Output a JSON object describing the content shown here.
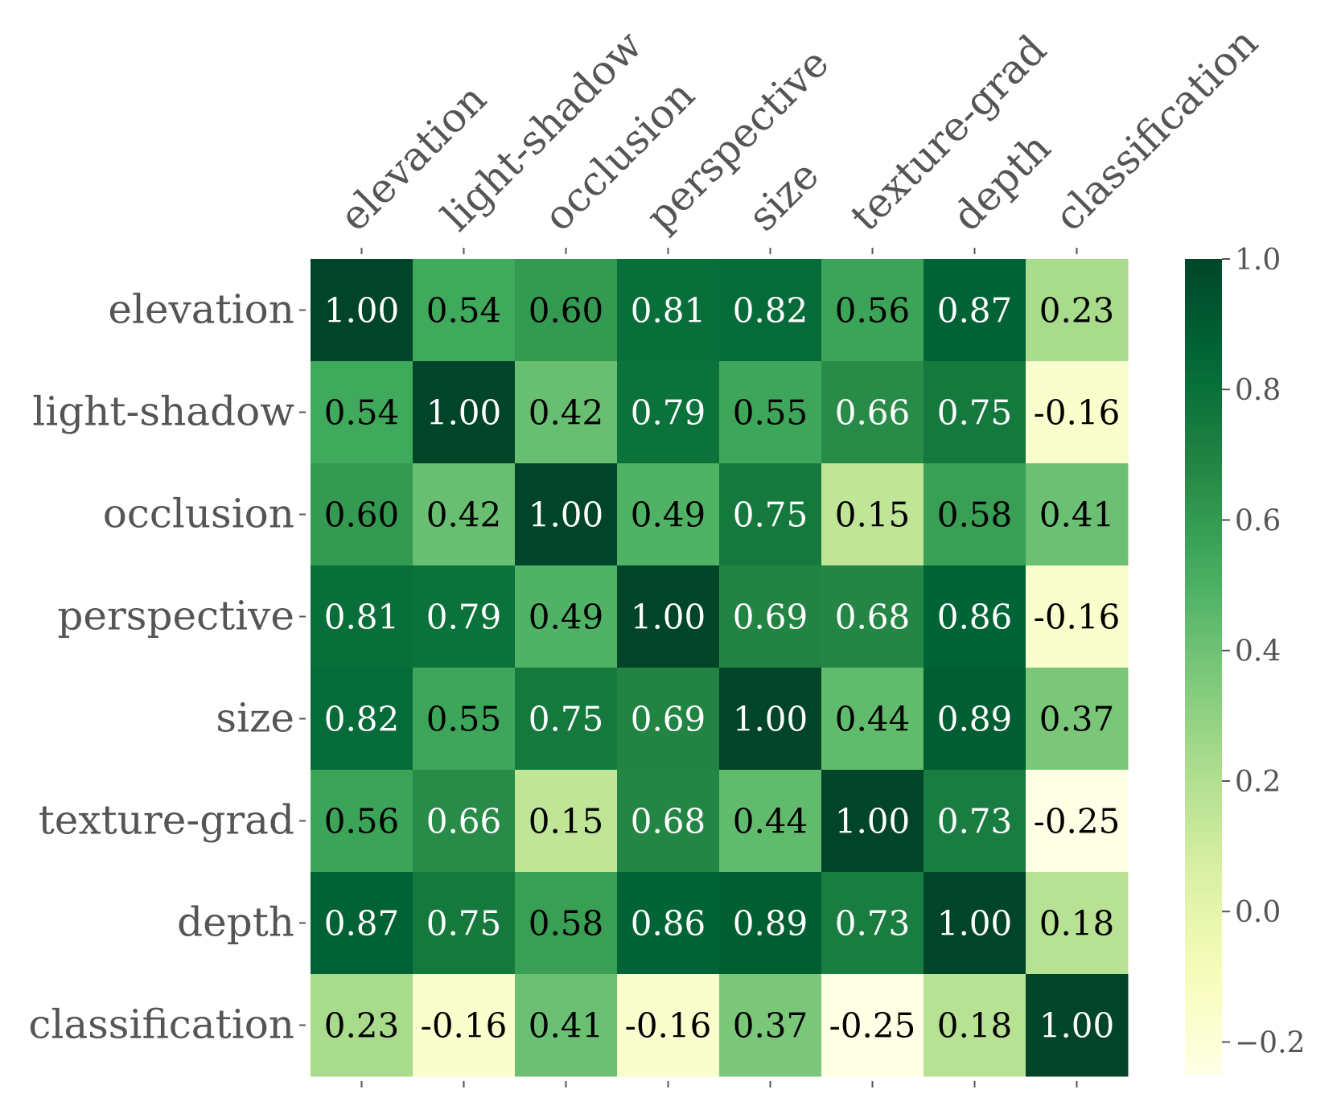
{
  "chart_data": {
    "type": "heatmap",
    "title": "",
    "labels": [
      "elevation",
      "light-shadow",
      "occlusion",
      "perspective",
      "size",
      "texture-grad",
      "depth",
      "classification"
    ],
    "matrix": [
      [
        1.0,
        0.54,
        0.6,
        0.81,
        0.82,
        0.56,
        0.87,
        0.23
      ],
      [
        0.54,
        1.0,
        0.42,
        0.79,
        0.55,
        0.66,
        0.75,
        -0.16
      ],
      [
        0.6,
        0.42,
        1.0,
        0.49,
        0.75,
        0.15,
        0.58,
        0.41
      ],
      [
        0.81,
        0.79,
        0.49,
        1.0,
        0.69,
        0.68,
        0.86,
        -0.16
      ],
      [
        0.82,
        0.55,
        0.75,
        0.69,
        1.0,
        0.44,
        0.89,
        0.37
      ],
      [
        0.56,
        0.66,
        0.15,
        0.68,
        0.44,
        1.0,
        0.73,
        -0.25
      ],
      [
        0.87,
        0.75,
        0.58,
        0.86,
        0.89,
        0.73,
        1.0,
        0.18
      ],
      [
        0.23,
        -0.16,
        0.41,
        -0.16,
        0.37,
        -0.25,
        0.18,
        1.0
      ]
    ],
    "cell_labels": [
      [
        "1.00",
        "0.54",
        "0.60",
        "0.81",
        "0.82",
        "0.56",
        "0.87",
        "0.23"
      ],
      [
        "0.54",
        "1.00",
        "0.42",
        "0.79",
        "0.55",
        "0.66",
        "0.75",
        "-0.16"
      ],
      [
        "0.60",
        "0.42",
        "1.00",
        "0.49",
        "0.75",
        "0.15",
        "0.58",
        "0.41"
      ],
      [
        "0.81",
        "0.79",
        "0.49",
        "1.00",
        "0.69",
        "0.68",
        "0.86",
        "-0.16"
      ],
      [
        "0.82",
        "0.55",
        "0.75",
        "0.69",
        "1.00",
        "0.44",
        "0.89",
        "0.37"
      ],
      [
        "0.56",
        "0.66",
        "0.15",
        "0.68",
        "0.44",
        "1.00",
        "0.73",
        "-0.25"
      ],
      [
        "0.87",
        "0.75",
        "0.58",
        "0.86",
        "0.89",
        "0.73",
        "1.00",
        "0.18"
      ],
      [
        "0.23",
        "-0.16",
        "0.41",
        "-0.16",
        "0.37",
        "-0.25",
        "0.18",
        "1.00"
      ]
    ],
    "colormap": "YlGn",
    "vmin": -0.25,
    "vmax": 1.0,
    "colorbar": {
      "ticks": [
        1.0,
        0.8,
        0.6,
        0.4,
        0.2,
        0.0,
        -0.2
      ],
      "tick_labels": [
        "1.0",
        "0.8",
        "0.6",
        "0.4",
        "0.2",
        "0.0",
        "−0.2"
      ]
    },
    "xlabel": "",
    "ylabel": ""
  }
}
